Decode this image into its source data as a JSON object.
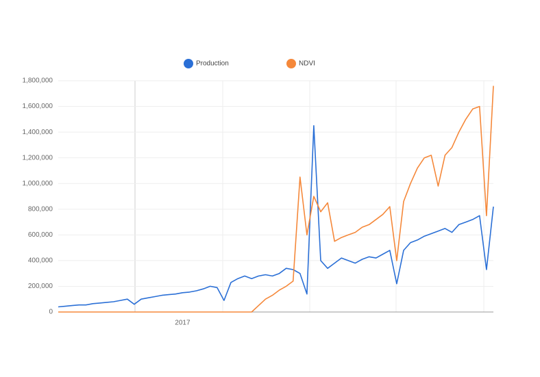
{
  "chart_data": {
    "type": "line",
    "categories": [
      null,
      null,
      null,
      null,
      null,
      null,
      null,
      null,
      null,
      null,
      null,
      null,
      null,
      null,
      null,
      null,
      null,
      null,
      "2017",
      null,
      null,
      null,
      null,
      null,
      null,
      null,
      null,
      null,
      null,
      null,
      null,
      null,
      null,
      null,
      null,
      null,
      null,
      null,
      null,
      null,
      null,
      null,
      null,
      null,
      null,
      null,
      null,
      null,
      null,
      null,
      null,
      null,
      null,
      null,
      null,
      null,
      null,
      null,
      null,
      null,
      null,
      null,
      null,
      null
    ],
    "series": [
      {
        "name": "Production",
        "color": "#2a6fd6",
        "values": [
          40000,
          45000,
          50000,
          55000,
          55000,
          65000,
          70000,
          75000,
          80000,
          90000,
          100000,
          60000,
          100000,
          110000,
          120000,
          130000,
          135000,
          140000,
          150000,
          155000,
          165000,
          180000,
          200000,
          190000,
          90000,
          230000,
          260000,
          280000,
          260000,
          280000,
          290000,
          280000,
          300000,
          340000,
          330000,
          300000,
          140000,
          1450000,
          400000,
          340000,
          380000,
          420000,
          400000,
          380000,
          410000,
          430000,
          420000,
          450000,
          480000,
          220000,
          480000,
          540000,
          560000,
          590000,
          610000,
          630000,
          650000,
          620000,
          680000,
          700000,
          720000,
          750000,
          330000,
          820000
        ]
      },
      {
        "name": "NDVI",
        "color": "#f5883a",
        "values": [
          0,
          0,
          0,
          0,
          0,
          0,
          0,
          0,
          0,
          0,
          0,
          0,
          0,
          0,
          0,
          0,
          0,
          0,
          0,
          0,
          0,
          0,
          0,
          0,
          0,
          0,
          0,
          0,
          0,
          50000,
          100000,
          130000,
          170000,
          200000,
          240000,
          1050000,
          600000,
          900000,
          780000,
          850000,
          550000,
          580000,
          600000,
          620000,
          660000,
          680000,
          720000,
          760000,
          820000,
          400000,
          860000,
          1000000,
          1120000,
          1200000,
          1220000,
          980000,
          1220000,
          1280000,
          1400000,
          1500000,
          1580000,
          1600000,
          750000,
          1760000
        ]
      }
    ],
    "ylim": [
      0,
      1800000
    ],
    "yticks": [
      0,
      {
        "value": 200000,
        "label": "200,000"
      },
      {
        "value": 400000,
        "label": "400,000"
      },
      {
        "value": 600000,
        "label": "600,000"
      },
      {
        "value": 800000,
        "label": "800,000"
      },
      {
        "value": 1000000,
        "label": "1,000,000"
      },
      {
        "value": 1200000,
        "label": "1,200,000"
      },
      {
        "value": 1400000,
        "label": "1,400,000"
      },
      {
        "value": 1600000,
        "label": "1,600,000"
      },
      {
        "value": 1800000,
        "label": "1,800,000"
      }
    ],
    "grid": true
  }
}
